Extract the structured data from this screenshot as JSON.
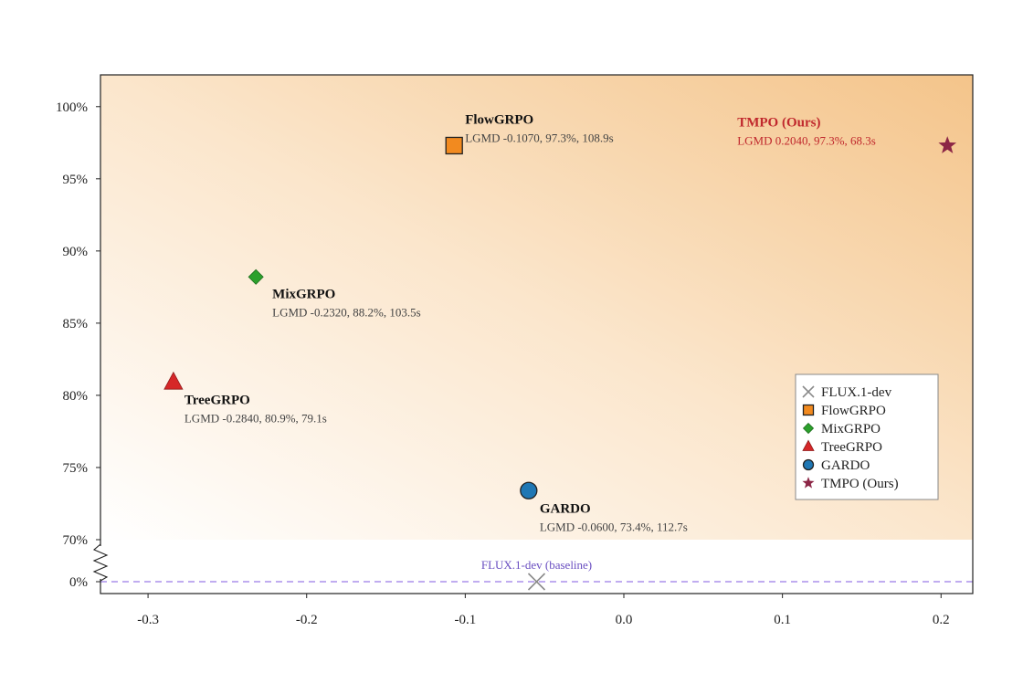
{
  "chart_data": {
    "type": "scatter",
    "title": "",
    "xlabel": "",
    "ylabel": "",
    "xlim": [
      -0.33,
      0.22
    ],
    "ylim": [
      0.7,
      1.022
    ],
    "y_axis_break": {
      "below": "70%",
      "baseline_tick": "0%"
    },
    "x_ticks": [
      -0.3,
      -0.2,
      -0.1,
      0.0,
      0.1,
      0.2
    ],
    "x_tick_labels": [
      "-0.3",
      "-0.2",
      "-0.1",
      "0.0",
      "0.1",
      "0.2"
    ],
    "y_ticks": [
      0.7,
      0.75,
      0.8,
      0.85,
      0.9,
      0.95,
      1.0
    ],
    "y_tick_labels": [
      "70%",
      "75%",
      "80%",
      "85%",
      "90%",
      "95%",
      "100%"
    ],
    "baseline_tick_label": "0%",
    "grid": false,
    "background": "gradient white (bottom-left) to orange (top-right)",
    "legend_position": "lower-right",
    "points": [
      {
        "name": "FlowGRPO",
        "label": "FlowGRPO",
        "stats": "LGMD -0.1070, 97.3%, 108.9s",
        "x": -0.107,
        "y": 0.973,
        "time_s": 108.9,
        "marker": "square",
        "color": "#f28a1f",
        "label_color": "#111111"
      },
      {
        "name": "MixGRPO",
        "label": "MixGRPO",
        "stats": "LGMD -0.2320, 88.2%, 103.5s",
        "x": -0.232,
        "y": 0.882,
        "time_s": 103.5,
        "marker": "diamond",
        "color": "#2ca02c",
        "label_color": "#111111"
      },
      {
        "name": "TreeGRPO",
        "label": "TreeGRPO",
        "stats": "LGMD -0.2840, 80.9%, 79.1s",
        "x": -0.284,
        "y": 0.809,
        "time_s": 79.1,
        "marker": "triangle",
        "color": "#d62728",
        "label_color": "#111111"
      },
      {
        "name": "GARDO",
        "label": "GARDO",
        "stats": "LGMD -0.0600, 73.4%, 112.7s",
        "x": -0.06,
        "y": 0.734,
        "time_s": 112.7,
        "marker": "circle",
        "color": "#1f77b4",
        "label_color": "#111111"
      },
      {
        "name": "TMPO (Ours)",
        "label": "TMPO (Ours)",
        "stats": "LGMD 0.2040, 97.3%, 68.3s",
        "x": 0.204,
        "y": 0.973,
        "time_s": 68.3,
        "marker": "star",
        "color": "#8c2646",
        "label_color": "#c0282d"
      }
    ],
    "baseline": {
      "name": "FLUX.1-dev",
      "label": "FLUX.1-dev (baseline)",
      "x": -0.055,
      "y": 0.0,
      "marker": "x",
      "color": "#8a8a8a",
      "line_color": "#9b7be6",
      "label_color": "#6a4fc1"
    },
    "legend": [
      {
        "label": "FLUX.1-dev",
        "marker": "x",
        "color": "#8a8a8a"
      },
      {
        "label": "FlowGRPO",
        "marker": "square",
        "color": "#f28a1f"
      },
      {
        "label": "MixGRPO",
        "marker": "diamond",
        "color": "#2ca02c"
      },
      {
        "label": "TreeGRPO",
        "marker": "triangle",
        "color": "#d62728"
      },
      {
        "label": "GARDO",
        "marker": "circle",
        "color": "#1f77b4"
      },
      {
        "label": "TMPO (Ours)",
        "marker": "star",
        "color": "#8c2646"
      }
    ]
  }
}
